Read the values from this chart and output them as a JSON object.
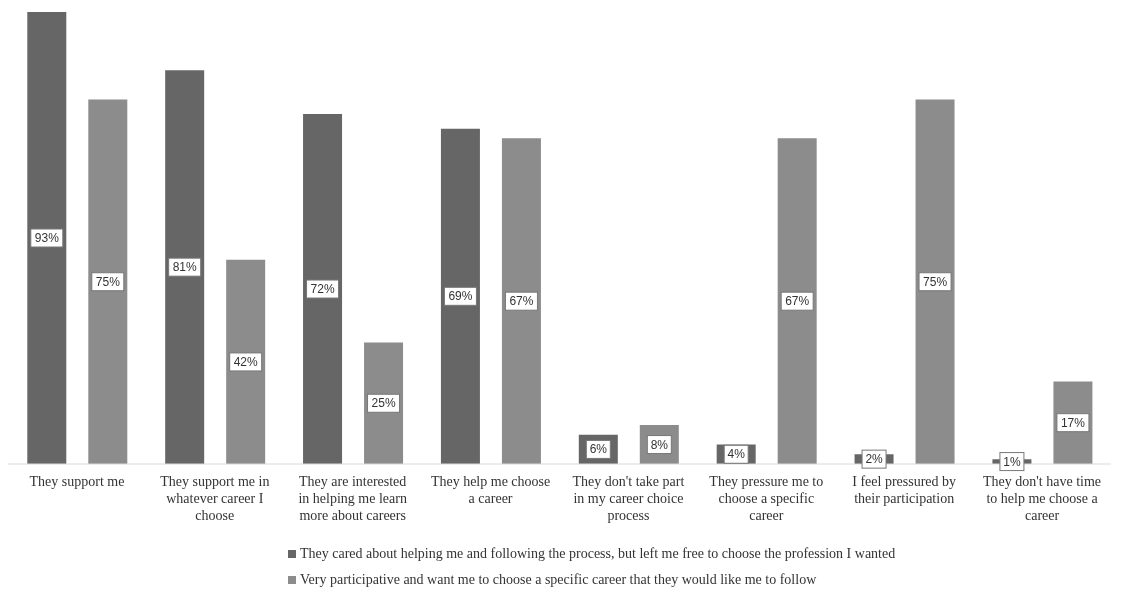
{
  "chart_data": {
    "type": "bar",
    "categories": [
      "They support me",
      "They support me in whatever career I choose",
      "They are interested in helping me learn more about careers",
      "They help me choose a career",
      "They don't take part in my career choice process",
      "They pressure me to choose a specific career",
      "I feel pressured by their participation",
      "They don't have time to help me choose a career"
    ],
    "series": [
      {
        "name": "They cared about helping me and following the process, but left me free to choose the profession I wanted",
        "color": "#666666",
        "values": [
          93,
          81,
          72,
          69,
          6,
          4,
          2,
          1
        ],
        "value_labels": [
          "93%",
          "81%",
          "72%",
          "69%",
          "6%",
          "4%",
          "2%",
          "1%"
        ]
      },
      {
        "name": "Very participative and want me to choose a specific career that they would like me to follow",
        "color": "#8c8c8c",
        "values": [
          75,
          42,
          25,
          67,
          8,
          67,
          75,
          17
        ],
        "value_labels": [
          "75%",
          "42%",
          "25%",
          "67%",
          "8%",
          "67%",
          "75%",
          "17%"
        ]
      }
    ],
    "legend": "bottom",
    "grid": false
  }
}
